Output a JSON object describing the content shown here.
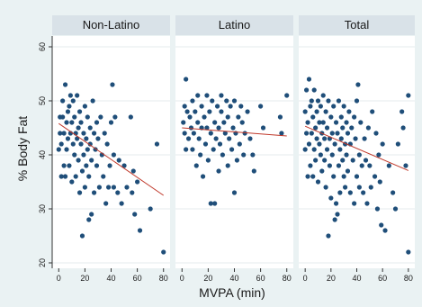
{
  "chart_data": {
    "type": "scatter",
    "xlabel": "MVPA (min)",
    "ylabel": "% Body Fat",
    "xlim": [
      -5,
      85
    ],
    "ylim": [
      19,
      62
    ],
    "xticks": [
      0,
      20,
      40,
      60,
      80
    ],
    "yticks": [
      20,
      30,
      40,
      50,
      60
    ],
    "grid": true,
    "colors": {
      "points": "#1f4e79",
      "fit_line": "#c0392b",
      "panel_background": "#ffffff",
      "strip_background": "#d9e2e8",
      "figure_background": "#eaf2f3"
    },
    "panels": [
      {
        "title": "Non-Latino",
        "fit_line": [
          [
            0,
            45.8
          ],
          [
            80,
            32.5
          ]
        ],
        "points": [
          [
            0,
            41
          ],
          [
            1,
            44
          ],
          [
            1,
            47
          ],
          [
            2,
            36
          ],
          [
            2,
            42
          ],
          [
            3,
            47
          ],
          [
            3,
            50
          ],
          [
            4,
            38
          ],
          [
            4,
            44
          ],
          [
            5,
            53
          ],
          [
            5,
            36
          ],
          [
            6,
            46
          ],
          [
            6,
            41
          ],
          [
            7,
            48
          ],
          [
            7,
            43
          ],
          [
            8,
            49
          ],
          [
            8,
            38
          ],
          [
            9,
            44
          ],
          [
            9,
            51
          ],
          [
            10,
            35
          ],
          [
            10,
            46
          ],
          [
            11,
            42
          ],
          [
            11,
            50
          ],
          [
            12,
            40
          ],
          [
            12,
            47
          ],
          [
            13,
            44
          ],
          [
            13,
            36
          ],
          [
            14,
            51
          ],
          [
            14,
            43
          ],
          [
            15,
            39
          ],
          [
            15,
            45
          ],
          [
            16,
            48
          ],
          [
            16,
            33
          ],
          [
            17,
            42
          ],
          [
            17,
            46
          ],
          [
            18,
            37
          ],
          [
            18,
            25
          ],
          [
            19,
            44
          ],
          [
            19,
            40
          ],
          [
            20,
            49
          ],
          [
            20,
            34
          ],
          [
            21,
            43
          ],
          [
            21,
            38
          ],
          [
            22,
            47
          ],
          [
            22,
            41
          ],
          [
            23,
            36
          ],
          [
            23,
            28
          ],
          [
            24,
            45
          ],
          [
            24,
            42
          ],
          [
            25,
            29
          ],
          [
            25,
            39
          ],
          [
            26,
            50
          ],
          [
            27,
            44
          ],
          [
            27,
            33
          ],
          [
            28,
            41
          ],
          [
            29,
            46
          ],
          [
            29,
            38
          ],
          [
            30,
            43
          ],
          [
            31,
            34
          ],
          [
            32,
            47
          ],
          [
            33,
            40
          ],
          [
            34,
            36
          ],
          [
            35,
            44
          ],
          [
            36,
            31
          ],
          [
            37,
            42
          ],
          [
            38,
            34
          ],
          [
            39,
            38
          ],
          [
            40,
            46
          ],
          [
            41,
            53
          ],
          [
            42,
            40
          ],
          [
            42,
            34
          ],
          [
            43,
            47
          ],
          [
            45,
            33
          ],
          [
            46,
            39
          ],
          [
            48,
            31
          ],
          [
            50,
            38
          ],
          [
            52,
            34
          ],
          [
            55,
            47
          ],
          [
            56,
            33
          ],
          [
            57,
            37
          ],
          [
            58,
            29
          ],
          [
            60,
            35
          ],
          [
            62,
            26
          ],
          [
            70,
            30
          ],
          [
            75,
            42
          ],
          [
            80,
            22
          ]
        ]
      },
      {
        "title": "Latino",
        "fit_line": [
          [
            0,
            45
          ],
          [
            80,
            43.5
          ]
        ],
        "points": [
          [
            1,
            46
          ],
          [
            2,
            44
          ],
          [
            2,
            49
          ],
          [
            3,
            41
          ],
          [
            3,
            54
          ],
          [
            4,
            48
          ],
          [
            5,
            43
          ],
          [
            6,
            47
          ],
          [
            7,
            45
          ],
          [
            8,
            50
          ],
          [
            8,
            41
          ],
          [
            9,
            44
          ],
          [
            10,
            48
          ],
          [
            11,
            38
          ],
          [
            12,
            46
          ],
          [
            12,
            51
          ],
          [
            13,
            43
          ],
          [
            14,
            40
          ],
          [
            15,
            49
          ],
          [
            15,
            45
          ],
          [
            16,
            36
          ],
          [
            17,
            47
          ],
          [
            18,
            42
          ],
          [
            19,
            51
          ],
          [
            19,
            45
          ],
          [
            20,
            39
          ],
          [
            21,
            48
          ],
          [
            22,
            44
          ],
          [
            22,
            31
          ],
          [
            23,
            50
          ],
          [
            24,
            41
          ],
          [
            25,
            46
          ],
          [
            25,
            31
          ],
          [
            26,
            43
          ],
          [
            27,
            49
          ],
          [
            28,
            37
          ],
          [
            28,
            45
          ],
          [
            29,
            42
          ],
          [
            30,
            48
          ],
          [
            30,
            51
          ],
          [
            31,
            40
          ],
          [
            32,
            46
          ],
          [
            33,
            44
          ],
          [
            34,
            50
          ],
          [
            35,
            38
          ],
          [
            35,
            47
          ],
          [
            36,
            43
          ],
          [
            37,
            49
          ],
          [
            38,
            41
          ],
          [
            39,
            45
          ],
          [
            40,
            33
          ],
          [
            40,
            50
          ],
          [
            41,
            44
          ],
          [
            42,
            39
          ],
          [
            43,
            47
          ],
          [
            44,
            42
          ],
          [
            45,
            49
          ],
          [
            46,
            46
          ],
          [
            47,
            40
          ],
          [
            48,
            44
          ],
          [
            50,
            48
          ],
          [
            52,
            43
          ],
          [
            54,
            40
          ],
          [
            55,
            37
          ],
          [
            60,
            49
          ],
          [
            62,
            45
          ],
          [
            75,
            47
          ],
          [
            76,
            44
          ],
          [
            80,
            51
          ]
        ]
      },
      {
        "title": "Total",
        "fit_line": [
          [
            0,
            45.3
          ],
          [
            80,
            37.1
          ]
        ],
        "points": [
          [
            0,
            41
          ],
          [
            0,
            48
          ],
          [
            1,
            44
          ],
          [
            1,
            52
          ],
          [
            2,
            36
          ],
          [
            2,
            46
          ],
          [
            3,
            42
          ],
          [
            3,
            54
          ],
          [
            4,
            38
          ],
          [
            4,
            49
          ],
          [
            5,
            44
          ],
          [
            5,
            50
          ],
          [
            6,
            36
          ],
          [
            6,
            47
          ],
          [
            7,
            41
          ],
          [
            7,
            52
          ],
          [
            8,
            45
          ],
          [
            8,
            39
          ],
          [
            9,
            48
          ],
          [
            9,
            43
          ],
          [
            10,
            35
          ],
          [
            10,
            50
          ],
          [
            11,
            46
          ],
          [
            11,
            42
          ],
          [
            12,
            40
          ],
          [
            12,
            49
          ],
          [
            13,
            44
          ],
          [
            13,
            37
          ],
          [
            14,
            51
          ],
          [
            14,
            46
          ],
          [
            15,
            39
          ],
          [
            15,
            43
          ],
          [
            16,
            48
          ],
          [
            16,
            34
          ],
          [
            17,
            45
          ],
          [
            17,
            41
          ],
          [
            18,
            25
          ],
          [
            18,
            50
          ],
          [
            19,
            43
          ],
          [
            19,
            38
          ],
          [
            20,
            47
          ],
          [
            20,
            32
          ],
          [
            21,
            44
          ],
          [
            21,
            40
          ],
          [
            22,
            49
          ],
          [
            22,
            36
          ],
          [
            23,
            42
          ],
          [
            23,
            28
          ],
          [
            24,
            46
          ],
          [
            24,
            31
          ],
          [
            25,
            29
          ],
          [
            25,
            44
          ],
          [
            26,
            50
          ],
          [
            26,
            38
          ],
          [
            27,
            41
          ],
          [
            27,
            33
          ],
          [
            28,
            47
          ],
          [
            28,
            43
          ],
          [
            29,
            39
          ],
          [
            29,
            45
          ],
          [
            30,
            36
          ],
          [
            30,
            49
          ],
          [
            31,
            42
          ],
          [
            31,
            34
          ],
          [
            32,
            46
          ],
          [
            32,
            40
          ],
          [
            33,
            44
          ],
          [
            33,
            37
          ],
          [
            34,
            48
          ],
          [
            35,
            33
          ],
          [
            35,
            42
          ],
          [
            36,
            45
          ],
          [
            37,
            39
          ],
          [
            38,
            47
          ],
          [
            38,
            31
          ],
          [
            39,
            43
          ],
          [
            40,
            36
          ],
          [
            40,
            50
          ],
          [
            41,
            53
          ],
          [
            42,
            40
          ],
          [
            42,
            34
          ],
          [
            43,
            46
          ],
          [
            44,
            38
          ],
          [
            45,
            33
          ],
          [
            46,
            43
          ],
          [
            47,
            39
          ],
          [
            48,
            31
          ],
          [
            49,
            45
          ],
          [
            50,
            38
          ],
          [
            51,
            34
          ],
          [
            52,
            48
          ],
          [
            54,
            36
          ],
          [
            55,
            44
          ],
          [
            56,
            30
          ],
          [
            57,
            40
          ],
          [
            58,
            35
          ],
          [
            59,
            27
          ],
          [
            60,
            42
          ],
          [
            62,
            26
          ],
          [
            65,
            38
          ],
          [
            68,
            33
          ],
          [
            70,
            30
          ],
          [
            72,
            42
          ],
          [
            75,
            48
          ],
          [
            76,
            45
          ],
          [
            78,
            38
          ],
          [
            80,
            51
          ],
          [
            80,
            22
          ]
        ]
      }
    ]
  }
}
